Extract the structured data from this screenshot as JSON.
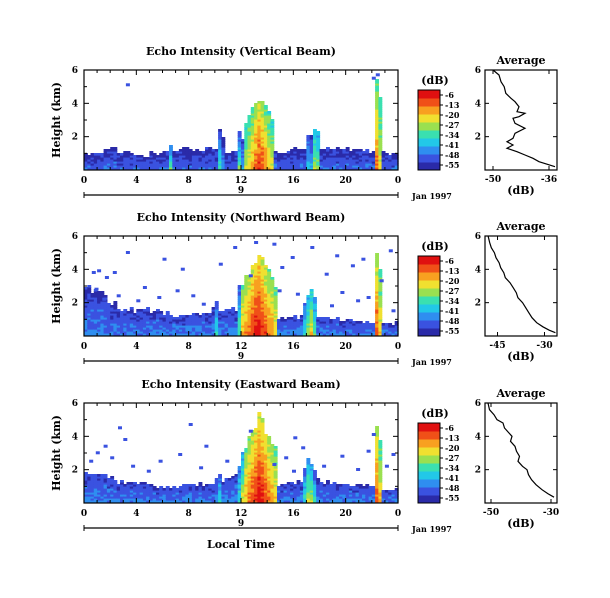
{
  "colors": {
    "colormap": [
      "#2a2aa8",
      "#3a52e0",
      "#2f8ef0",
      "#22c8e8",
      "#3ae0b0",
      "#9ae050",
      "#f0e030",
      "#f8a020",
      "#f05018",
      "#e01010"
    ],
    "axis": "#000000",
    "background": "#ffffff"
  },
  "colorbar": {
    "unit": "(dB)",
    "ticks": [
      "-6",
      "-13",
      "-20",
      "-27",
      "-34",
      "-41",
      "-48",
      "-55"
    ],
    "range": [
      -55,
      -6
    ]
  },
  "date_label": "Jan 1997",
  "xlabel": "Local Time",
  "chart_data": [
    {
      "type": "heatmap",
      "title": "Echo Intensity (Vertical Beam)",
      "ylabel": "Height (km)",
      "x_ticks": [
        "0",
        "4",
        "8",
        "12",
        "16",
        "20",
        "0"
      ],
      "xlim": [
        0,
        24
      ],
      "y_ticks": [
        "2",
        "4",
        "6"
      ],
      "ylim": [
        0,
        6
      ],
      "day_label": "9",
      "base_top_km": [
        0.9,
        1.0,
        1.2,
        1.0,
        0.8,
        0.9,
        1.0,
        1.1,
        1.2,
        1.2,
        1.3,
        1.1,
        1.0,
        0.9,
        1.0,
        1.1,
        1.2,
        1.3,
        1.4,
        1.3,
        1.2,
        1.1,
        1.0,
        1.0,
        0.9
      ],
      "base_intensity_db": -46,
      "plumes": [
        {
          "time": 6.5,
          "top_km": 1.5,
          "width_h": 0.3,
          "peak_db": -30
        },
        {
          "time": 10.3,
          "top_km": 2.5,
          "width_h": 0.3,
          "peak_db": -30
        },
        {
          "time": 11.8,
          "top_km": 2.5,
          "width_h": 0.3,
          "peak_db": -28
        },
        {
          "time": 13.3,
          "top_km": 4.6,
          "width_h": 1.1,
          "peak_db": -10
        },
        {
          "time": 17.1,
          "top_km": 2.5,
          "width_h": 0.3,
          "peak_db": -30
        },
        {
          "time": 17.6,
          "top_km": 3.0,
          "width_h": 0.3,
          "peak_db": -20
        },
        {
          "time": 22.3,
          "top_km": 5.8,
          "width_h": 0.3,
          "peak_db": -12
        }
      ],
      "scatter_pixels": [
        [
          3.2,
          5.2
        ],
        [
          22.0,
          5.6
        ],
        [
          22.3,
          5.8
        ]
      ],
      "average": {
        "title": "Average",
        "xlabel": "(dB)",
        "x_ticks": [
          "-50",
          "-36"
        ],
        "xlim": [
          -52,
          -34
        ],
        "y_ticks": [
          "2",
          "4",
          "6"
        ],
        "ylim": [
          0,
          6
        ],
        "points": [
          [
            -50.0,
            6.0
          ],
          [
            -48.5,
            5.7
          ],
          [
            -48.0,
            5.3
          ],
          [
            -47.2,
            5.0
          ],
          [
            -46.8,
            4.6
          ],
          [
            -45.5,
            4.3
          ],
          [
            -44.5,
            4.1
          ],
          [
            -43.5,
            3.8
          ],
          [
            -44.0,
            3.5
          ],
          [
            -42.0,
            3.4
          ],
          [
            -43.5,
            3.2
          ],
          [
            -45.0,
            3.1
          ],
          [
            -44.5,
            2.8
          ],
          [
            -42.0,
            2.5
          ],
          [
            -44.5,
            2.2
          ],
          [
            -45.0,
            1.9
          ],
          [
            -46.5,
            1.7
          ],
          [
            -45.0,
            1.5
          ],
          [
            -46.5,
            1.3
          ],
          [
            -44.0,
            1.1
          ],
          [
            -42.0,
            0.9
          ],
          [
            -40.0,
            0.7
          ],
          [
            -38.5,
            0.5
          ],
          [
            -36.5,
            0.35
          ],
          [
            -34.5,
            0.2
          ]
        ]
      }
    },
    {
      "type": "heatmap",
      "title": "Echo Intensity (Northward Beam)",
      "ylabel": "Height (km)",
      "x_ticks": [
        "0",
        "4",
        "8",
        "12",
        "16",
        "20",
        "0"
      ],
      "xlim": [
        0,
        24
      ],
      "y_ticks": [
        "2",
        "4",
        "6"
      ],
      "ylim": [
        0,
        6
      ],
      "day_label": "9",
      "base_top_km": [
        2.6,
        2.8,
        1.9,
        1.6,
        1.5,
        1.5,
        1.3,
        1.2,
        1.2,
        1.3,
        1.6,
        1.5,
        1.4,
        1.2,
        1.1,
        1.0,
        1.1,
        1.1,
        1.0,
        1.0,
        0.9,
        0.9,
        0.8,
        0.8,
        0.7
      ],
      "base_intensity_db": -44,
      "plumes": [
        {
          "time": 10.0,
          "top_km": 2.0,
          "width_h": 0.3,
          "peak_db": -32
        },
        {
          "time": 11.9,
          "top_km": 3.3,
          "width_h": 0.4,
          "peak_db": -25
        },
        {
          "time": 13.2,
          "top_km": 5.0,
          "width_h": 1.4,
          "peak_db": -6
        },
        {
          "time": 17.2,
          "top_km": 3.0,
          "width_h": 0.5,
          "peak_db": -20
        },
        {
          "time": 22.3,
          "top_km": 5.4,
          "width_h": 0.3,
          "peak_db": -10
        }
      ],
      "scatter_pixels": [
        [
          0.6,
          3.9
        ],
        [
          1.0,
          4.0
        ],
        [
          1.6,
          3.6
        ],
        [
          2.2,
          3.9
        ],
        [
          3.2,
          5.1
        ],
        [
          4.5,
          3.0
        ],
        [
          6.0,
          4.7
        ],
        [
          7.4,
          4.1
        ],
        [
          10.3,
          4.4
        ],
        [
          11.4,
          5.4
        ],
        [
          13.0,
          5.7
        ],
        [
          14.4,
          5.6
        ],
        [
          15.0,
          4.2
        ],
        [
          15.8,
          4.8
        ],
        [
          17.3,
          5.4
        ],
        [
          18.4,
          3.8
        ],
        [
          19.2,
          4.9
        ],
        [
          20.4,
          4.3
        ],
        [
          21.2,
          4.7
        ],
        [
          22.6,
          3.4
        ],
        [
          23.3,
          5.2
        ],
        [
          0.8,
          2.9
        ],
        [
          2.5,
          2.5
        ],
        [
          4.0,
          2.2
        ],
        [
          5.6,
          2.4
        ],
        [
          7.0,
          2.8
        ],
        [
          9.0,
          2.0
        ],
        [
          12.6,
          3.7
        ],
        [
          14.8,
          2.8
        ],
        [
          16.2,
          2.6
        ],
        [
          18.8,
          1.9
        ],
        [
          20.8,
          2.2
        ],
        [
          21.6,
          2.4
        ],
        [
          23.5,
          1.6
        ],
        [
          1.4,
          2.3
        ],
        [
          8.2,
          2.5
        ],
        [
          19.6,
          2.7
        ]
      ],
      "average": {
        "title": "Average",
        "xlabel": "(dB)",
        "x_ticks": [
          "-45",
          "-30"
        ],
        "xlim": [
          -49,
          -26
        ],
        "y_ticks": [
          "2",
          "4",
          "6"
        ],
        "ylim": [
          0,
          6
        ],
        "points": [
          [
            -48.0,
            6.0
          ],
          [
            -47.5,
            5.6
          ],
          [
            -47.0,
            5.3
          ],
          [
            -46.0,
            5.0
          ],
          [
            -45.5,
            4.7
          ],
          [
            -44.5,
            4.4
          ],
          [
            -44.0,
            4.1
          ],
          [
            -43.0,
            3.8
          ],
          [
            -42.5,
            3.5
          ],
          [
            -41.0,
            3.2
          ],
          [
            -40.0,
            2.9
          ],
          [
            -39.0,
            2.6
          ],
          [
            -38.5,
            2.3
          ],
          [
            -37.0,
            2.0
          ],
          [
            -36.0,
            1.7
          ],
          [
            -35.0,
            1.4
          ],
          [
            -34.0,
            1.1
          ],
          [
            -32.5,
            0.8
          ],
          [
            -30.5,
            0.55
          ],
          [
            -28.5,
            0.35
          ],
          [
            -26.5,
            0.2
          ]
        ]
      }
    },
    {
      "type": "heatmap",
      "title": "Echo Intensity (Eastward Beam)",
      "ylabel": "Height (km)",
      "x_ticks": [
        "0",
        "4",
        "8",
        "12",
        "16",
        "20",
        "0"
      ],
      "xlim": [
        0,
        24
      ],
      "y_ticks": [
        "2",
        "4",
        "6"
      ],
      "ylim": [
        0,
        6
      ],
      "day_label": "9",
      "base_top_km": [
        1.6,
        1.9,
        1.4,
        1.2,
        1.1,
        1.0,
        0.9,
        0.9,
        1.0,
        1.1,
        1.3,
        1.4,
        1.6,
        1.4,
        1.2,
        1.1,
        1.2,
        1.3,
        1.2,
        1.1,
        1.0,
        1.0,
        0.9,
        0.8,
        0.8
      ],
      "base_intensity_db": -44,
      "plumes": [
        {
          "time": 10.2,
          "top_km": 1.9,
          "width_h": 0.3,
          "peak_db": -30
        },
        {
          "time": 12.0,
          "top_km": 3.2,
          "width_h": 0.4,
          "peak_db": -24
        },
        {
          "time": 13.3,
          "top_km": 5.2,
          "width_h": 1.3,
          "peak_db": -6
        },
        {
          "time": 17.1,
          "top_km": 2.8,
          "width_h": 0.5,
          "peak_db": -22
        },
        {
          "time": 22.3,
          "top_km": 5.3,
          "width_h": 0.3,
          "peak_db": -10
        }
      ],
      "scatter_pixels": [
        [
          0.4,
          2.6
        ],
        [
          0.9,
          3.1
        ],
        [
          1.5,
          3.5
        ],
        [
          2.0,
          2.8
        ],
        [
          3.0,
          3.9
        ],
        [
          3.6,
          2.3
        ],
        [
          4.8,
          2.0
        ],
        [
          5.7,
          2.6
        ],
        [
          7.2,
          3.0
        ],
        [
          8.8,
          2.2
        ],
        [
          9.2,
          3.5
        ],
        [
          10.8,
          2.6
        ],
        [
          14.4,
          2.4
        ],
        [
          15.3,
          2.8
        ],
        [
          15.9,
          2.0
        ],
        [
          16.6,
          3.4
        ],
        [
          18.2,
          2.3
        ],
        [
          19.6,
          2.9
        ],
        [
          20.8,
          2.1
        ],
        [
          21.6,
          3.2
        ],
        [
          23.0,
          2.3
        ],
        [
          23.5,
          3.0
        ],
        [
          2.6,
          4.6
        ],
        [
          12.6,
          4.4
        ],
        [
          16.0,
          4.0
        ],
        [
          8.0,
          4.8
        ],
        [
          22.0,
          4.2
        ]
      ],
      "average": {
        "title": "Average",
        "xlabel": "(dB)",
        "x_ticks": [
          "-50",
          "-30"
        ],
        "xlim": [
          -52,
          -28
        ],
        "y_ticks": [
          "2",
          "4",
          "6"
        ],
        "ylim": [
          0,
          6
        ],
        "points": [
          [
            -51.0,
            6.0
          ],
          [
            -50.5,
            5.6
          ],
          [
            -49.0,
            5.3
          ],
          [
            -48.0,
            5.0
          ],
          [
            -46.0,
            4.8
          ],
          [
            -45.5,
            4.5
          ],
          [
            -44.0,
            4.2
          ],
          [
            -43.0,
            4.0
          ],
          [
            -43.5,
            3.7
          ],
          [
            -42.0,
            3.4
          ],
          [
            -41.5,
            3.1
          ],
          [
            -40.5,
            2.8
          ],
          [
            -41.0,
            2.5
          ],
          [
            -39.5,
            2.2
          ],
          [
            -38.0,
            2.0
          ],
          [
            -37.5,
            1.7
          ],
          [
            -36.5,
            1.4
          ],
          [
            -35.0,
            1.1
          ],
          [
            -33.0,
            0.8
          ],
          [
            -31.0,
            0.55
          ],
          [
            -29.0,
            0.35
          ]
        ]
      }
    }
  ]
}
